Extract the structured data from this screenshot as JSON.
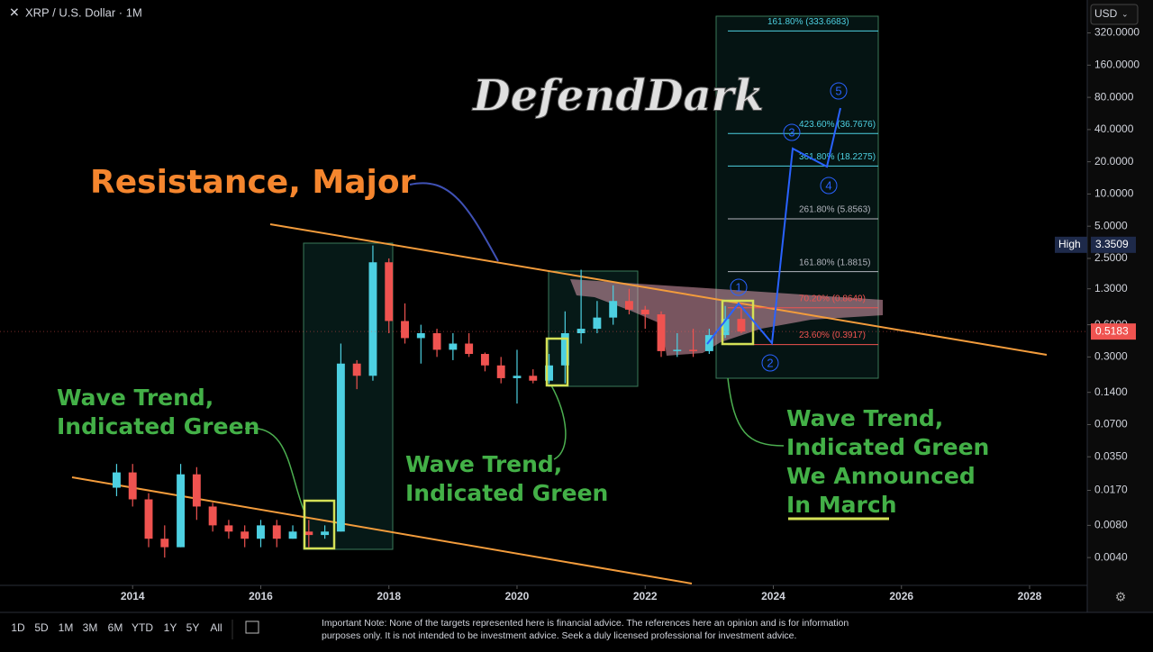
{
  "header": {
    "title": "XRP / U.S. Dollar · 1M",
    "currency": "USD",
    "watermark": "DefendDark"
  },
  "chart_data": {
    "type": "candlestick",
    "log_scale": true,
    "grid": false,
    "up_color": "#4dd0e1",
    "down_color": "#ef5350",
    "xlim": [
      2011.93,
      2028.9
    ],
    "xticks": [
      2014,
      2016,
      2018,
      2020,
      2022,
      2024,
      2026,
      2028
    ],
    "ylim": [
      0.0022,
      650
    ],
    "yticks": [
      {
        "value": 320,
        "label": "320.0000"
      },
      {
        "value": 160,
        "label": "160.0000"
      },
      {
        "value": 80,
        "label": "80.0000"
      },
      {
        "value": 40,
        "label": "40.0000"
      },
      {
        "value": 20,
        "label": "20.0000"
      },
      {
        "value": 10,
        "label": "10.0000"
      },
      {
        "value": 5,
        "label": "5.0000"
      },
      {
        "value": 2.5,
        "label": "2.5000"
      },
      {
        "value": 1.3,
        "label": "1.3000"
      },
      {
        "value": 0.6,
        "label": "0.6000"
      },
      {
        "value": 0.3,
        "label": "0.3000"
      },
      {
        "value": 0.14,
        "label": "0.1400"
      },
      {
        "value": 0.07,
        "label": "0.0700"
      },
      {
        "value": 0.035,
        "label": "0.0350"
      },
      {
        "value": 0.017,
        "label": "0.0170"
      },
      {
        "value": 0.008,
        "label": "0.0080"
      },
      {
        "value": 0.004,
        "label": "0.0040"
      }
    ],
    "x": [
      2013.75,
      2014.0,
      2014.25,
      2014.5,
      2014.75,
      2015.0,
      2015.25,
      2015.5,
      2015.75,
      2016.0,
      2016.25,
      2016.5,
      2016.75,
      2017.0,
      2017.25,
      2017.5,
      2017.75,
      2018.0,
      2018.25,
      2018.5,
      2018.75,
      2019.0,
      2019.25,
      2019.5,
      2019.75,
      2020.0,
      2020.25,
      2020.5,
      2020.75,
      2021.0,
      2021.25,
      2021.5,
      2021.75,
      2022.0,
      2022.25,
      2022.5,
      2022.75,
      2023.0,
      2023.25,
      2023.5
    ],
    "open": [
      0.018,
      0.025,
      0.014,
      0.006,
      0.005,
      0.024,
      0.012,
      0.008,
      0.007,
      0.006,
      0.008,
      0.006,
      0.007,
      0.0065,
      0.007,
      0.26,
      0.2,
      2.3,
      0.65,
      0.45,
      0.5,
      0.35,
      0.4,
      0.32,
      0.25,
      0.19,
      0.2,
      0.18,
      0.25,
      0.5,
      0.55,
      0.7,
      1.0,
      0.83,
      0.75,
      0.34,
      0.35,
      0.34,
      0.48,
      0.68
    ],
    "high": [
      0.03,
      0.03,
      0.016,
      0.008,
      0.03,
      0.028,
      0.013,
      0.009,
      0.008,
      0.009,
      0.009,
      0.008,
      0.009,
      0.008,
      0.4,
      0.28,
      3.3,
      2.5,
      0.95,
      0.6,
      0.55,
      0.5,
      0.5,
      0.33,
      0.3,
      0.35,
      0.23,
      0.32,
      0.8,
      1.96,
      1.0,
      1.4,
      1.3,
      0.9,
      0.8,
      0.5,
      0.55,
      0.55,
      0.9,
      0.95
    ],
    "low": [
      0.015,
      0.012,
      0.005,
      0.004,
      0.005,
      0.009,
      0.007,
      0.006,
      0.005,
      0.005,
      0.005,
      0.006,
      0.005,
      0.006,
      0.007,
      0.15,
      0.18,
      0.5,
      0.4,
      0.26,
      0.3,
      0.28,
      0.3,
      0.22,
      0.17,
      0.11,
      0.17,
      0.17,
      0.17,
      0.4,
      0.5,
      0.6,
      0.75,
      0.55,
      0.3,
      0.3,
      0.3,
      0.32,
      0.45,
      0.5
    ],
    "close": [
      0.025,
      0.014,
      0.006,
      0.005,
      0.024,
      0.012,
      0.008,
      0.007,
      0.006,
      0.008,
      0.006,
      0.007,
      0.0065,
      0.007,
      0.26,
      0.2,
      2.3,
      0.65,
      0.45,
      0.5,
      0.35,
      0.4,
      0.32,
      0.25,
      0.19,
      0.2,
      0.18,
      0.25,
      0.5,
      0.55,
      0.7,
      1.0,
      0.83,
      0.75,
      0.34,
      0.35,
      0.34,
      0.48,
      0.68,
      0.5183
    ],
    "fib_levels": [
      {
        "value": 333.6683,
        "label": "161.80% (333.6683)",
        "color": "#4dd0e1"
      },
      {
        "value": 36.7676,
        "label": "423.60% (36.7676)",
        "color": "#4dd0e1"
      },
      {
        "value": 18.2275,
        "label": "361.80% (18.2275)",
        "color": "#4dd0e1"
      },
      {
        "value": 5.8563,
        "label": "261.80% (5.8563)",
        "color": "#b2b5be"
      },
      {
        "value": 1.8815,
        "label": "161.80% (1.8815)",
        "color": "#b2b5be"
      },
      {
        "value": 0.8649,
        "label": "70.20% (0.8649)",
        "color": "#ef5350"
      },
      {
        "value": 0.3917,
        "label": "23.60% (0.3917)",
        "color": "#ef5350"
      }
    ],
    "last_price": {
      "value": 0.5183,
      "label": "0.5183"
    },
    "high_marker": {
      "name": "High",
      "value": 3.3509,
      "label": "3.3509"
    },
    "wave_labels": [
      "1",
      "2",
      "3",
      "4",
      "5"
    ],
    "annotations": [
      "Resistance, Major",
      "Wave Trend,",
      "Indicated Green",
      "Wave Trend,",
      "Indicated Green",
      "Wave Trend,",
      "Indicated Green",
      "We Announced",
      "In March"
    ]
  },
  "toolbar": {
    "ranges": [
      "1D",
      "5D",
      "1M",
      "3M",
      "6M",
      "YTD",
      "1Y",
      "5Y",
      "All"
    ],
    "note": [
      "Important Note: None of the targets represented here is financial advice. The references here an opinion and is for information",
      "purposes only. It is not intended to be investment advice. Seek a duly licensed professional for investment advice."
    ]
  }
}
